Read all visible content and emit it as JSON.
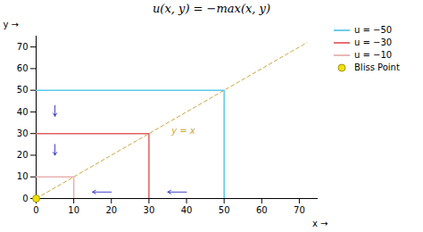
{
  "chart_data": {
    "type": "line",
    "title": "u(x, y) = −max(x, y)",
    "xlabel": "x →",
    "ylabel": "y →",
    "xlim": [
      0,
      75
    ],
    "ylim": [
      0,
      75
    ],
    "xticks": [
      0,
      10,
      20,
      30,
      40,
      50,
      60,
      70
    ],
    "yticks": [
      0,
      10,
      20,
      30,
      40,
      50,
      60,
      70
    ],
    "legend": "upper right",
    "series": [
      {
        "name": "u = −50",
        "color": "#5bc8e8",
        "x": [
          0,
          50,
          50
        ],
        "values": [
          50,
          50,
          0
        ]
      },
      {
        "name": "u = −30",
        "color": "#e06060",
        "x": [
          0,
          30,
          30
        ],
        "values": [
          30,
          30,
          0
        ]
      },
      {
        "name": "u = −10",
        "color": "#e8b0b0",
        "x": [
          0,
          10,
          10
        ],
        "values": [
          10,
          10,
          0
        ]
      },
      {
        "name": "Bliss Point",
        "type": "scatter",
        "marker": "circle",
        "color": "#f0e000",
        "x": [
          0
        ],
        "values": [
          0
        ]
      }
    ],
    "reference_lines": [
      {
        "x": [
          0,
          72
        ],
        "values": [
          0,
          72
        ],
        "color": "#c8a840",
        "line_style": "dashed"
      }
    ],
    "annotations": [
      {
        "text": "y = x",
        "x": 36,
        "y": 30,
        "color": "#c8a840"
      }
    ],
    "arrows": [
      {
        "x1": 5,
        "y1": 43,
        "x2": 5,
        "y2": 38,
        "color": "#4040c0"
      },
      {
        "x1": 5,
        "y1": 25,
        "x2": 5,
        "y2": 20,
        "color": "#4040c0"
      },
      {
        "x1": 20,
        "y1": 3,
        "x2": 15,
        "y2": 3,
        "color": "#4040c0"
      },
      {
        "x1": 40,
        "y1": 3,
        "x2": 35,
        "y2": 3,
        "color": "#4040c0"
      }
    ]
  }
}
